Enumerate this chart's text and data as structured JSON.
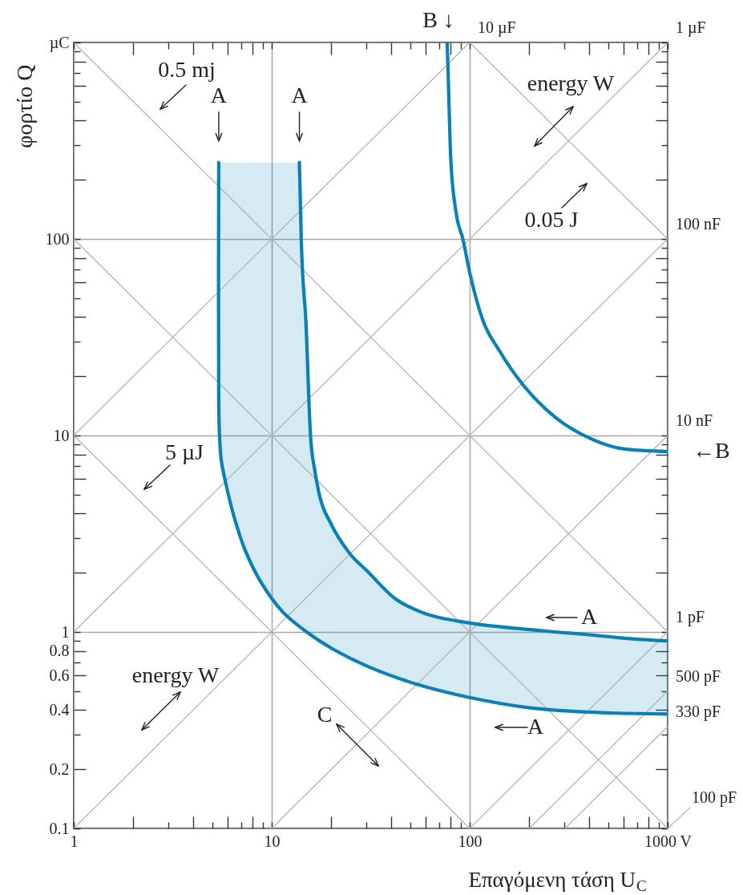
{
  "chart_data": {
    "type": "line",
    "log": "xy",
    "xlabel": "Επαγόμενη τάση U$_{C}$",
    "ylabel": "φορτίο Q",
    "xlim": [
      1,
      1000
    ],
    "ylim": [
      0.1,
      1000
    ],
    "xticks": [
      1,
      {
        "value": 2,
        "label": null
      },
      {
        "value": 3,
        "label": null
      },
      {
        "value": 4,
        "label": null
      },
      {
        "value": 5,
        "label": null
      },
      {
        "value": 6,
        "label": null
      },
      {
        "value": 7,
        "label": null
      },
      {
        "value": 8,
        "label": null
      },
      {
        "value": 9,
        "label": null
      },
      10,
      {
        "value": 20,
        "label": null
      },
      {
        "value": 30,
        "label": null
      },
      {
        "value": 40,
        "label": null
      },
      {
        "value": 50,
        "label": null
      },
      {
        "value": 60,
        "label": null
      },
      {
        "value": 70,
        "label": null
      },
      {
        "value": 80,
        "label": null
      },
      {
        "value": 90,
        "label": null
      },
      100,
      {
        "value": 200,
        "label": null
      },
      {
        "value": 300,
        "label": null
      },
      {
        "value": 400,
        "label": null
      },
      {
        "value": 500,
        "label": null
      },
      {
        "value": 600,
        "label": null
      },
      {
        "value": 700,
        "label": null
      },
      {
        "value": 800,
        "label": null
      },
      {
        "value": 900,
        "label": null
      },
      {
        "value": 1000,
        "label": "1000 V"
      }
    ],
    "yticks": [
      0.1,
      0.2,
      {
        "value": 0.3,
        "label": null
      },
      0.4,
      {
        "value": 0.5,
        "label": null
      },
      0.6,
      {
        "value": 0.7,
        "label": null
      },
      0.8,
      {
        "value": 0.9,
        "label": null
      },
      1,
      {
        "value": 2,
        "label": null
      },
      {
        "value": 3,
        "label": null
      },
      {
        "value": 4,
        "label": null
      },
      {
        "value": 5,
        "label": null
      },
      {
        "value": 6,
        "label": null
      },
      {
        "value": 7,
        "label": null
      },
      {
        "value": 8,
        "label": null
      },
      {
        "value": 9,
        "label": null
      },
      10,
      {
        "value": 20,
        "label": null
      },
      {
        "value": 30,
        "label": null
      },
      {
        "value": 40,
        "label": null
      },
      {
        "value": 50,
        "label": null
      },
      {
        "value": 60,
        "label": null
      },
      {
        "value": 70,
        "label": null
      },
      {
        "value": 80,
        "label": null
      },
      {
        "value": 90,
        "label": null
      },
      100,
      {
        "value": 200,
        "label": null
      },
      {
        "value": 300,
        "label": null
      },
      {
        "value": 400,
        "label": null
      },
      {
        "value": 500,
        "label": null
      },
      {
        "value": 600,
        "label": null
      },
      {
        "value": 700,
        "label": null
      },
      {
        "value": 800,
        "label": null
      },
      {
        "value": 900,
        "label": null
      },
      {
        "value": 1000,
        "label": "µC"
      }
    ],
    "grid": true,
    "series": [
      {
        "name": "10 µF",
        "color": "#b3b3b3",
        "x": [
          1,
          100
        ],
        "values": [
          10,
          1000
        ]
      },
      {
        "name": "1 µF",
        "color": "#b3b3b3",
        "x": [
          1,
          1000
        ],
        "values": [
          1,
          1000
        ]
      },
      {
        "name": "100 nF",
        "color": "#b3b3b3",
        "x": [
          1,
          1000
        ],
        "values": [
          0.1,
          100
        ]
      },
      {
        "name": "10 nF",
        "color": "#b3b3b3",
        "x": [
          10,
          1000
        ],
        "values": [
          0.1,
          10
        ]
      },
      {
        "name": "1 pF",
        "color": "#b3b3b3",
        "x": [
          100,
          1000
        ],
        "values": [
          0.1,
          1
        ]
      },
      {
        "name": "500 pF",
        "color": "#b3b3b3",
        "x": [
          200,
          1000
        ],
        "values": [
          0.1,
          0.5
        ]
      },
      {
        "name": "330 pF",
        "color": "#b3b3b3",
        "x": [
          303,
          1000
        ],
        "values": [
          0.1,
          0.33
        ]
      },
      {
        "color": "#b3b3b3",
        "x": [
          1,
          1000
        ],
        "values": [
          1000,
          1
        ]
      },
      {
        "color": "#b3b3b3",
        "x": [
          100,
          1000
        ],
        "values": [
          1000,
          100
        ]
      },
      {
        "color": "#b3b3b3",
        "x": [
          1,
          1000
        ],
        "values": [
          100,
          0.1
        ]
      },
      {
        "color": "#b3b3b3",
        "x": [
          1,
          100
        ],
        "values": [
          10,
          0.1
        ]
      },
      {
        "color": "#0b80b5",
        "x": [
          5.4,
          5.4,
          5.45,
          5.56,
          5.91,
          6.49,
          7.35,
          8.86,
          11.4,
          15.0,
          20.5,
          30.8,
          53.7,
          100,
          198,
          392,
          1000
        ],
        "values": [
          245,
          15,
          10,
          7.5,
          5.5,
          3.78,
          2.6,
          1.78,
          1.26,
          1.0,
          0.815,
          0.665,
          0.543,
          0.464,
          0.412,
          0.391,
          0.382
        ]
      },
      {
        "color": "#0b80b5",
        "x": [
          5.4,
          5.45,
          5.56,
          5.91,
          6.49,
          7.35,
          8.86,
          11.4,
          13.8,
          14.1,
          14.9,
          15.7,
          16.5,
          17.4,
          19.9,
          24.7,
          30.7,
          41.9,
          57.1,
          100,
          198,
          270,
          392,
          685,
          1000
        ],
        "values": [
          null,
          null,
          null,
          null,
          null,
          null,
          null,
          null,
          245,
          100,
          37,
          10,
          6.65,
          5.0,
          3.56,
          2.52,
          2.02,
          1.48,
          1.26,
          1.11,
          1.03,
          1.0,
          0.97,
          0.92,
          0.9
        ],
        "upper": [
          245,
          245,
          245,
          245,
          245,
          245,
          245,
          245,
          245,
          100,
          37,
          10,
          6.65,
          5.0,
          3.56,
          2.52,
          2.02,
          1.48,
          1.26,
          1.11,
          1.03,
          1.0,
          0.97,
          0.92,
          0.9
        ],
        "lower": [
          15,
          10,
          7.5,
          5.5,
          3.78,
          2.6,
          1.78,
          1.26,
          1.07,
          1.05,
          1.0,
          0.97,
          0.935,
          0.89,
          0.83,
          0.74,
          0.665,
          0.595,
          0.535,
          0.464,
          0.412,
          0.403,
          0.391,
          0.386,
          0.382
        ]
      },
      {
        "color": "#0b80b5",
        "x": [
          77,
          78,
          80.3,
          85.5,
          92.4,
          100,
          116.6,
          140.6,
          186,
          270,
          404,
          605,
          1000
        ],
        "values": [
          1000,
          644,
          252,
          135,
          100,
          67.6,
          38.5,
          27.2,
          18.1,
          12.4,
          9.68,
          8.53,
          8.28
        ]
      }
    ],
    "annotations": [
      "0.5 mj",
      {
        "text": "A",
        "x": 5.4,
        "y": 245
      },
      {
        "text": "A",
        "x": 13.8,
        "y": 245
      },
      {
        "text": "B ↓",
        "x": 77,
        "y": 1000
      },
      "energy W",
      "0.05 J",
      "5 µJ",
      {
        "text": "←B",
        "x": 1000,
        "y": 8.28
      },
      "A",
      "energy W",
      "C",
      "A",
      {
        "text": "100 pF",
        "x": 1000,
        "y": 0.1
      }
    ]
  }
}
